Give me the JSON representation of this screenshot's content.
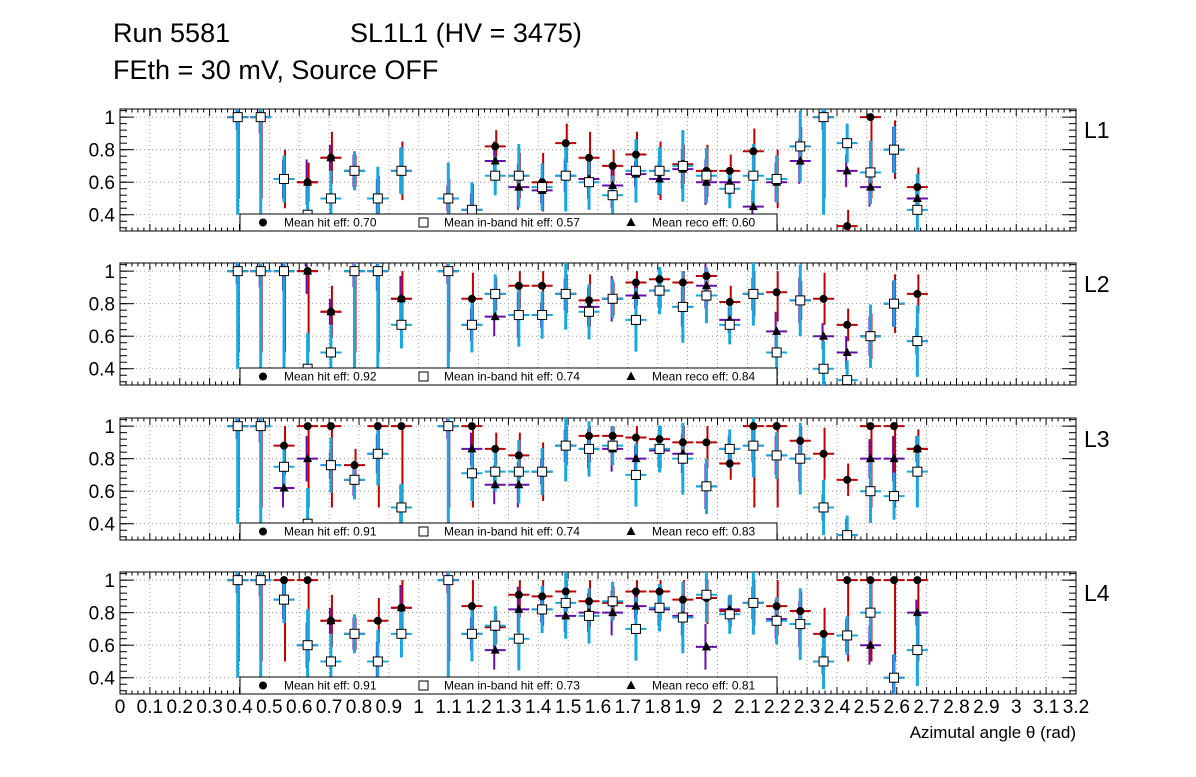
{
  "header": {
    "run_label": "Run 5581",
    "chamber_label": "SL1L1 (HV = 3475)",
    "subtitle": "FEth = 30 mV, Source OFF"
  },
  "axis": {
    "xlabel": "Azimutal angle θ (rad)",
    "xtick_labels": [
      "0",
      "0.1",
      "0.2",
      "0.3",
      "0.4",
      "0.5",
      "0.6",
      "0.7",
      "0.8",
      "0.9",
      "1",
      "1.1",
      "1.2",
      "1.3",
      "1.4",
      "1.5",
      "1.6",
      "1.7",
      "1.8",
      "1.9",
      "2",
      "2.1",
      "2.2",
      "2.3",
      "2.4",
      "2.5",
      "2.6",
      "2.7",
      "2.8",
      "2.9",
      "3",
      "3.1",
      "3.2"
    ],
    "ytick_labels": [
      "0.4",
      "0.6",
      "0.8",
      "1"
    ]
  },
  "colors": {
    "hit": "#c00000",
    "inband": "#1aa7e0",
    "reco": "#6a0dad"
  },
  "legend_labels": {
    "hit": "Mean hit  eff: ",
    "inband": "Mean in-band hit eff: ",
    "reco": "Mean reco eff: "
  },
  "chart_data": [
    {
      "type": "scatter",
      "title": "L1",
      "xlim": [
        0,
        3.2
      ],
      "ylim": [
        0.3,
        1.05
      ],
      "grid": true,
      "legend_position": "bottom",
      "x": [
        0.394,
        0.471,
        0.549,
        0.628,
        0.706,
        0.785,
        0.863,
        0.942,
        1.099,
        1.178,
        1.256,
        1.335,
        1.413,
        1.492,
        1.57,
        1.649,
        1.727,
        1.806,
        1.884,
        1.963,
        2.041,
        2.12,
        2.198,
        2.277,
        2.355,
        2.434,
        2.512,
        2.591,
        2.669
      ],
      "series": [
        {
          "name": "Mean hit  eff: 0.70",
          "marker": "circle",
          "mean": "0.70",
          "values": [
            1.0,
            1.0,
            0.62,
            0.6,
            0.75,
            0.67,
            0.5,
            0.67,
            0.5,
            0.43,
            0.82,
            0.64,
            0.6,
            0.84,
            0.75,
            0.7,
            0.77,
            0.67,
            0.71,
            0.67,
            0.67,
            0.79,
            0.62,
            0.82,
            1.0,
            0.33,
            1.0,
            0.8,
            0.57
          ]
        },
        {
          "name": "Mean in-band hit eff: 0.57",
          "marker": "open-square",
          "mean": "0.57",
          "values": [
            1.0,
            1.0,
            0.62,
            0.4,
            0.5,
            0.67,
            0.5,
            0.67,
            0.5,
            0.43,
            0.64,
            0.64,
            0.57,
            0.64,
            0.6,
            0.52,
            0.67,
            0.67,
            0.7,
            0.64,
            0.56,
            0.64,
            0.62,
            0.82,
            1.0,
            0.84,
            0.66,
            0.8,
            0.43
          ]
        },
        {
          "name": "Mean reco eff: 0.60",
          "marker": "triangle",
          "mean": "0.60",
          "values": [
            1.0,
            1.0,
            0.62,
            0.6,
            0.75,
            0.67,
            0.5,
            0.67,
            0.5,
            0.43,
            0.73,
            0.57,
            0.55,
            0.64,
            0.62,
            0.58,
            0.65,
            0.62,
            0.68,
            0.6,
            0.6,
            0.45,
            0.6,
            0.73,
            1.0,
            0.67,
            0.57,
            0.8,
            0.5
          ]
        }
      ]
    },
    {
      "type": "scatter",
      "title": "L2",
      "xlim": [
        0,
        3.2
      ],
      "ylim": [
        0.3,
        1.05
      ],
      "grid": true,
      "legend_position": "bottom",
      "x": [
        0.394,
        0.471,
        0.549,
        0.628,
        0.706,
        0.785,
        0.863,
        0.942,
        1.099,
        1.178,
        1.256,
        1.335,
        1.413,
        1.492,
        1.57,
        1.649,
        1.727,
        1.806,
        1.884,
        1.963,
        2.041,
        2.12,
        2.198,
        2.277,
        2.355,
        2.434,
        2.512,
        2.591,
        2.669
      ],
      "series": [
        {
          "name": "Mean hit  eff: 0.92",
          "marker": "circle",
          "mean": "0.92",
          "values": [
            1.0,
            1.0,
            1.0,
            1.0,
            0.75,
            1.0,
            1.0,
            0.83,
            1.0,
            0.83,
            0.86,
            0.91,
            0.91,
            0.86,
            0.82,
            0.83,
            0.93,
            0.95,
            0.93,
            0.97,
            0.81,
            0.86,
            0.87,
            0.82,
            0.83,
            0.67,
            0.6,
            0.8,
            0.86
          ]
        },
        {
          "name": "Mean in-band hit eff: 0.74",
          "marker": "open-square",
          "mean": "0.74",
          "values": [
            1.0,
            1.0,
            1.0,
            0.4,
            0.5,
            1.0,
            1.0,
            0.67,
            1.0,
            0.67,
            0.86,
            0.73,
            0.73,
            0.86,
            0.75,
            0.83,
            0.7,
            0.88,
            0.78,
            0.85,
            0.67,
            0.86,
            0.5,
            0.82,
            0.4,
            0.33,
            0.6,
            0.8,
            0.57
          ]
        },
        {
          "name": "Mean reco eff: 0.84",
          "marker": "triangle",
          "mean": "0.84",
          "values": [
            1.0,
            1.0,
            1.0,
            1.0,
            0.75,
            1.0,
            1.0,
            0.83,
            1.0,
            0.67,
            0.72,
            0.73,
            0.73,
            0.86,
            0.78,
            0.83,
            0.85,
            0.88,
            0.78,
            0.91,
            0.7,
            0.86,
            0.63,
            0.82,
            0.6,
            0.5,
            0.6,
            0.8,
            0.57
          ]
        }
      ]
    },
    {
      "type": "scatter",
      "title": "L3",
      "xlim": [
        0,
        3.2
      ],
      "ylim": [
        0.3,
        1.05
      ],
      "grid": true,
      "legend_position": "bottom",
      "x": [
        0.394,
        0.471,
        0.549,
        0.628,
        0.706,
        0.785,
        0.863,
        0.942,
        1.099,
        1.178,
        1.256,
        1.335,
        1.413,
        1.492,
        1.57,
        1.649,
        1.727,
        1.806,
        1.884,
        1.963,
        2.041,
        2.12,
        2.198,
        2.277,
        2.355,
        2.434,
        2.512,
        2.591,
        2.669
      ],
      "series": [
        {
          "name": "Mean hit  eff: 0.91",
          "marker": "circle",
          "mean": "0.91",
          "values": [
            1.0,
            1.0,
            0.88,
            1.0,
            1.0,
            0.76,
            1.0,
            1.0,
            1.0,
            1.0,
            0.86,
            0.82,
            0.72,
            0.88,
            0.94,
            0.94,
            0.93,
            0.92,
            0.9,
            0.9,
            0.77,
            1.0,
            1.0,
            0.91,
            0.83,
            0.67,
            1.0,
            1.0,
            0.86
          ]
        },
        {
          "name": "Mean in-band hit eff: 0.74",
          "marker": "open-square",
          "mean": "0.74",
          "values": [
            1.0,
            1.0,
            0.75,
            0.4,
            0.76,
            0.67,
            0.83,
            0.5,
            1.0,
            0.71,
            0.72,
            0.72,
            0.72,
            0.88,
            0.86,
            0.88,
            0.7,
            0.86,
            0.8,
            0.63,
            0.86,
            0.88,
            0.82,
            0.8,
            0.5,
            0.33,
            0.6,
            0.57,
            0.72
          ]
        },
        {
          "name": "Mean reco eff: 0.83",
          "marker": "triangle",
          "mean": "0.83",
          "values": [
            1.0,
            1.0,
            0.62,
            0.8,
            0.76,
            0.67,
            0.83,
            0.5,
            1.0,
            0.86,
            0.64,
            0.64,
            0.72,
            0.88,
            0.86,
            0.86,
            0.8,
            0.85,
            0.83,
            0.63,
            0.86,
            0.88,
            0.82,
            0.8,
            0.5,
            0.33,
            0.8,
            0.8,
            0.86
          ]
        }
      ]
    },
    {
      "type": "scatter",
      "title": "L4",
      "xlim": [
        0,
        3.2
      ],
      "ylim": [
        0.3,
        1.05
      ],
      "grid": true,
      "legend_position": "bottom",
      "x": [
        0.394,
        0.471,
        0.549,
        0.628,
        0.706,
        0.785,
        0.863,
        0.942,
        1.099,
        1.178,
        1.256,
        1.335,
        1.413,
        1.492,
        1.57,
        1.649,
        1.727,
        1.806,
        1.884,
        1.963,
        2.041,
        2.12,
        2.198,
        2.277,
        2.355,
        2.434,
        2.512,
        2.591,
        2.669
      ],
      "series": [
        {
          "name": "Mean hit  eff: 0.91",
          "marker": "circle",
          "mean": "0.91",
          "values": [
            1.0,
            1.0,
            1.0,
            1.0,
            0.75,
            0.67,
            0.75,
            0.83,
            1.0,
            0.84,
            0.71,
            0.91,
            0.9,
            0.93,
            0.87,
            0.86,
            0.93,
            0.93,
            0.88,
            0.89,
            0.81,
            0.86,
            0.84,
            0.81,
            0.67,
            1.0,
            1.0,
            1.0,
            1.0
          ]
        },
        {
          "name": "Mean in-band hit eff: 0.73",
          "marker": "open-square",
          "mean": "0.73",
          "values": [
            1.0,
            1.0,
            0.88,
            0.6,
            0.5,
            0.67,
            0.5,
            0.67,
            1.0,
            0.67,
            0.72,
            0.64,
            0.82,
            0.86,
            0.78,
            0.87,
            0.7,
            0.83,
            0.77,
            0.91,
            0.79,
            0.86,
            0.75,
            0.73,
            0.5,
            0.66,
            0.8,
            0.4,
            0.57
          ]
        },
        {
          "name": "Mean reco eff: 0.81",
          "marker": "triangle",
          "mean": "0.81",
          "values": [
            1.0,
            1.0,
            0.88,
            0.6,
            0.75,
            0.67,
            0.5,
            0.83,
            1.0,
            0.67,
            0.57,
            0.82,
            0.82,
            0.78,
            0.8,
            0.8,
            0.84,
            0.82,
            0.78,
            0.59,
            0.82,
            0.86,
            0.76,
            0.73,
            0.5,
            0.66,
            0.6,
            0.4,
            0.8
          ]
        }
      ]
    }
  ]
}
